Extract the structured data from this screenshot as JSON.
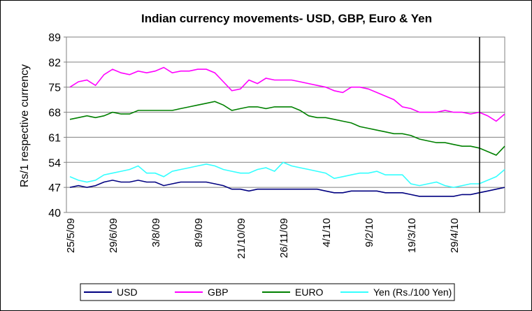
{
  "chart_data": {
    "type": "line",
    "title": "Indian currency movements- USD, GBP, Euro & Yen",
    "y_label": "Rs/1 respective currency",
    "categories": [
      "25/5/09",
      null,
      null,
      null,
      null,
      "29/6/09",
      null,
      null,
      null,
      null,
      "3/8/09",
      null,
      null,
      null,
      null,
      "8/9/09",
      null,
      null,
      null,
      null,
      "21/10/09",
      null,
      null,
      null,
      null,
      "26/11/09",
      null,
      null,
      null,
      null,
      "4/1/10",
      null,
      null,
      null,
      null,
      "9/2/10",
      null,
      null,
      null,
      null,
      "19/3/10",
      null,
      null,
      null,
      null,
      "29/4/10",
      null,
      null,
      null,
      null,
      null,
      null
    ],
    "series": [
      {
        "name": "USD",
        "color": "#000080",
        "values": [
          47,
          47.5,
          47,
          47.5,
          48.5,
          49,
          48.5,
          48.5,
          49,
          48.5,
          48.5,
          47.5,
          48,
          48.5,
          48.5,
          48.5,
          48.5,
          48,
          47.5,
          46.5,
          46.5,
          46,
          46.5,
          46.5,
          46.5,
          46.5,
          46.5,
          46.5,
          46.5,
          46.5,
          46,
          45.5,
          45.5,
          46,
          46,
          46,
          46,
          45.5,
          45.5,
          45.5,
          45,
          44.5,
          44.5,
          44.5,
          44.5,
          44.5,
          45,
          45,
          45.5,
          46,
          46.5,
          47
        ]
      },
      {
        "name": "GBP",
        "color": "#ff00ff",
        "values": [
          75,
          76.5,
          77,
          75.5,
          78.5,
          80,
          79,
          78.5,
          79.5,
          79,
          79.5,
          80.5,
          79,
          79.5,
          79.5,
          80,
          80,
          79,
          76.5,
          74,
          74.5,
          77,
          76,
          77.5,
          77,
          77,
          77,
          76.5,
          76,
          75.5,
          75,
          74,
          73.5,
          75,
          75,
          74.5,
          73.5,
          72.5,
          71.5,
          69.5,
          69,
          68,
          68,
          68,
          68.5,
          68,
          68,
          67.5,
          68,
          67,
          65.5,
          67.5
        ]
      },
      {
        "name": "EURO",
        "color": "#008000",
        "values": [
          66,
          66.5,
          67,
          66.5,
          67,
          68,
          67.5,
          67.5,
          68.5,
          68.5,
          68.5,
          68.5,
          68.5,
          69,
          69.5,
          70,
          70.5,
          71,
          70,
          68.5,
          69,
          69.5,
          69.5,
          69,
          69.5,
          69.5,
          69.5,
          68.5,
          67,
          66.5,
          66.5,
          66,
          65.5,
          65,
          64,
          63.5,
          63,
          62.5,
          62,
          62,
          61.5,
          60.5,
          60,
          59.5,
          59.5,
          59,
          58.5,
          58.5,
          58,
          57,
          56,
          58.5
        ]
      },
      {
        "name": "Yen (Rs./100 Yen)",
        "color": "#33ffff",
        "values": [
          50,
          49,
          48.5,
          49,
          50.5,
          51,
          51.5,
          52,
          53,
          51,
          51,
          50,
          51.5,
          52,
          52.5,
          53,
          53.5,
          53,
          52,
          51.5,
          51,
          51,
          52,
          52.5,
          51.5,
          54,
          53,
          52.5,
          52,
          51.5,
          51,
          49.5,
          50,
          50.5,
          51,
          51,
          51.5,
          50.5,
          50.5,
          50.5,
          48,
          47.5,
          48,
          48.5,
          47.5,
          47,
          47.5,
          48,
          48,
          49,
          50,
          52
        ]
      }
    ],
    "ylim": [
      40,
      89
    ],
    "yticks": [
      40,
      47,
      54,
      61,
      68,
      75,
      82,
      89
    ],
    "grid": true,
    "legend": "bottom"
  }
}
